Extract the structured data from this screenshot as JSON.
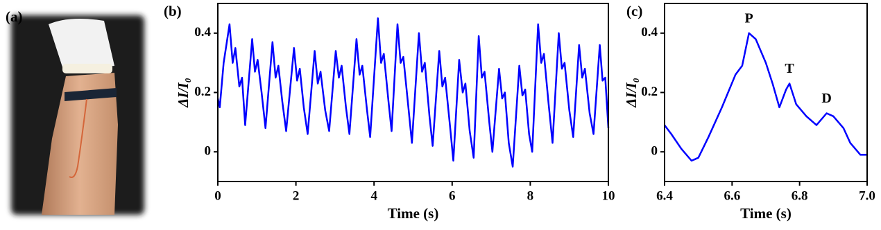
{
  "photo_panel": {
    "label": "(a)"
  },
  "chart_data": [
    {
      "type": "line",
      "label": "(b)",
      "x_label": "Time (s)",
      "y_label": "ΔI/I₀",
      "color": "#0000ff",
      "x": [
        0.0,
        0.05,
        0.15,
        0.3,
        0.38,
        0.45,
        0.55,
        0.62,
        0.7,
        0.88,
        0.95,
        1.02,
        1.12,
        1.22,
        1.4,
        1.48,
        1.55,
        1.65,
        1.75,
        1.95,
        2.03,
        2.1,
        2.2,
        2.3,
        2.48,
        2.56,
        2.63,
        2.75,
        2.85,
        3.02,
        3.1,
        3.17,
        3.28,
        3.37,
        3.55,
        3.63,
        3.7,
        3.82,
        3.9,
        4.1,
        4.18,
        4.25,
        4.37,
        4.45,
        4.6,
        4.68,
        4.75,
        4.88,
        4.97,
        5.15,
        5.23,
        5.3,
        5.42,
        5.5,
        5.67,
        5.75,
        5.82,
        5.95,
        6.03,
        6.18,
        6.27,
        6.34,
        6.45,
        6.55,
        6.68,
        6.76,
        6.83,
        6.95,
        7.03,
        7.2,
        7.28,
        7.35,
        7.45,
        7.55,
        7.72,
        7.8,
        7.87,
        7.97,
        8.05,
        8.2,
        8.28,
        8.35,
        8.47,
        8.57,
        8.73,
        8.81,
        8.88,
        9.0,
        9.1,
        9.25,
        9.33,
        9.4,
        9.52,
        9.62,
        9.78,
        9.85,
        9.92,
        10.0
      ],
      "values": [
        0.18,
        0.15,
        0.3,
        0.43,
        0.3,
        0.35,
        0.22,
        0.25,
        0.09,
        0.38,
        0.27,
        0.31,
        0.2,
        0.08,
        0.37,
        0.25,
        0.29,
        0.17,
        0.07,
        0.35,
        0.24,
        0.28,
        0.15,
        0.06,
        0.34,
        0.23,
        0.27,
        0.14,
        0.07,
        0.34,
        0.25,
        0.29,
        0.15,
        0.06,
        0.38,
        0.26,
        0.29,
        0.14,
        0.05,
        0.45,
        0.3,
        0.33,
        0.17,
        0.07,
        0.43,
        0.3,
        0.32,
        0.15,
        0.03,
        0.4,
        0.27,
        0.3,
        0.12,
        0.02,
        0.34,
        0.22,
        0.25,
        0.08,
        -0.03,
        0.31,
        0.2,
        0.23,
        0.07,
        -0.02,
        0.39,
        0.25,
        0.27,
        0.1,
        0.0,
        0.28,
        0.18,
        0.2,
        0.03,
        -0.05,
        0.29,
        0.19,
        0.21,
        0.06,
        0.0,
        0.43,
        0.3,
        0.33,
        0.16,
        0.03,
        0.4,
        0.28,
        0.3,
        0.14,
        0.05,
        0.36,
        0.25,
        0.28,
        0.13,
        0.06,
        0.36,
        0.24,
        0.25,
        0.08
      ],
      "xlim": [
        0,
        10
      ],
      "ylim": [
        -0.1,
        0.5
      ],
      "xticks": [
        0,
        2,
        4,
        6,
        8,
        10
      ],
      "yticks": [
        0,
        0.2,
        0.4
      ]
    },
    {
      "type": "line",
      "label": "(c)",
      "x_label": "Time (s)",
      "y_label": "ΔI/I₀",
      "color": "#0000ff",
      "x": [
        6.4,
        6.42,
        6.45,
        6.48,
        6.5,
        6.53,
        6.57,
        6.61,
        6.63,
        6.65,
        6.67,
        6.7,
        6.72,
        6.74,
        6.76,
        6.77,
        6.79,
        6.82,
        6.85,
        6.88,
        6.9,
        6.93,
        6.95,
        6.98,
        7.0
      ],
      "values": [
        0.09,
        0.06,
        0.01,
        -0.03,
        -0.02,
        0.05,
        0.15,
        0.26,
        0.29,
        0.4,
        0.38,
        0.3,
        0.23,
        0.15,
        0.21,
        0.23,
        0.16,
        0.12,
        0.09,
        0.13,
        0.12,
        0.08,
        0.03,
        -0.01,
        -0.01
      ],
      "xlim": [
        6.4,
        7.0
      ],
      "ylim": [
        -0.1,
        0.5
      ],
      "xticks": [
        6.4,
        6.6,
        6.8,
        {
          "value": 7,
          "label": "7.0"
        }
      ],
      "yticks": [
        0,
        0.2,
        0.4
      ],
      "annotations": [
        {
          "text": "P",
          "x": 6.65,
          "y": 0.4
        },
        {
          "text": "T",
          "x": 6.77,
          "y": 0.23
        },
        {
          "text": "D",
          "x": 6.88,
          "y": 0.13
        }
      ]
    }
  ]
}
